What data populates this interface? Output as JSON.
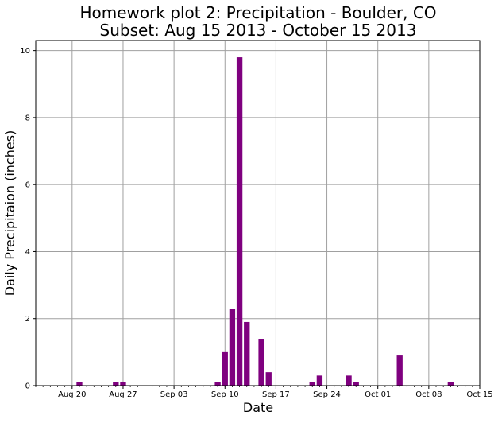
{
  "chart_data": {
    "type": "bar",
    "title_line1": "Homework plot 2: Precipitation - Boulder, CO",
    "title_line2": "Subset: Aug 15 2013 - October 15 2013",
    "xlabel": "Date",
    "ylabel": "Daily Precipitaion (inches)",
    "xlim": [
      "2013-08-15",
      "2013-10-15"
    ],
    "ylim": [
      0,
      10.3
    ],
    "grid": true,
    "bar_color": "#7f007f",
    "x_ticks": [
      {
        "date": "2013-08-20",
        "label": "Aug 20"
      },
      {
        "date": "2013-08-27",
        "label": "Aug 27"
      },
      {
        "date": "2013-09-03",
        "label": "Sep 03"
      },
      {
        "date": "2013-09-10",
        "label": "Sep 10"
      },
      {
        "date": "2013-09-17",
        "label": "Sep 17"
      },
      {
        "date": "2013-09-24",
        "label": "Sep 24"
      },
      {
        "date": "2013-10-01",
        "label": "Oct 01"
      },
      {
        "date": "2013-10-08",
        "label": "Oct 08"
      },
      {
        "date": "2013-10-15",
        "label": "Oct 15"
      }
    ],
    "y_ticks": [
      {
        "value": 0,
        "label": "0"
      },
      {
        "value": 2,
        "label": "2"
      },
      {
        "value": 4,
        "label": "4"
      },
      {
        "value": 6,
        "label": "6"
      },
      {
        "value": 8,
        "label": "8"
      },
      {
        "value": 10,
        "label": "10"
      }
    ],
    "points": [
      {
        "date": "2013-08-21",
        "value": 0.1
      },
      {
        "date": "2013-08-26",
        "value": 0.1
      },
      {
        "date": "2013-08-27",
        "value": 0.1
      },
      {
        "date": "2013-09-09",
        "value": 0.1
      },
      {
        "date": "2013-09-10",
        "value": 1.0
      },
      {
        "date": "2013-09-11",
        "value": 2.3
      },
      {
        "date": "2013-09-12",
        "value": 9.8
      },
      {
        "date": "2013-09-13",
        "value": 1.9
      },
      {
        "date": "2013-09-15",
        "value": 1.4
      },
      {
        "date": "2013-09-16",
        "value": 0.4
      },
      {
        "date": "2013-09-22",
        "value": 0.1
      },
      {
        "date": "2013-09-23",
        "value": 0.3
      },
      {
        "date": "2013-09-27",
        "value": 0.3
      },
      {
        "date": "2013-09-28",
        "value": 0.1
      },
      {
        "date": "2013-10-04",
        "value": 0.9
      },
      {
        "date": "2013-10-11",
        "value": 0.1
      }
    ]
  }
}
